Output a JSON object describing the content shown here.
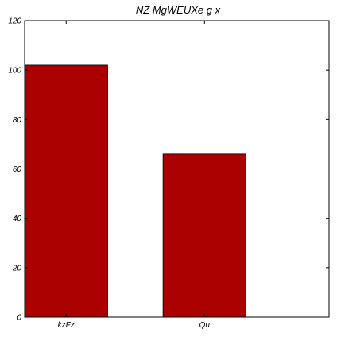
{
  "chart_data": {
    "type": "bar",
    "title": "NZ MgWEUXe g x",
    "categories": [
      "kzFz",
      "Qu"
    ],
    "values": [
      102,
      66
    ],
    "ylim": [
      0,
      120
    ],
    "yticks": [
      0,
      20,
      40,
      60,
      80,
      100,
      120
    ],
    "xlabel": "",
    "ylabel": "",
    "grid": false,
    "bar_color": "#aa0000"
  }
}
